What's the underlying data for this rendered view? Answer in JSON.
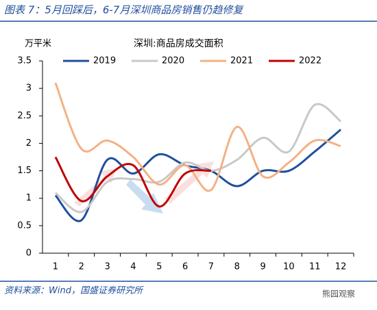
{
  "header": "图表 7：5月回踩后，6-7月深圳商品房销售仍趋修复",
  "source": "资料来源：Wind，国盛证券研究所",
  "watermark": "熊园观察",
  "chart_data": {
    "type": "line",
    "title": "深圳:商品房成交面积",
    "y_label": "万平米",
    "categories": [
      "1",
      "2",
      "3",
      "4",
      "5",
      "6",
      "7",
      "8",
      "9",
      "10",
      "11",
      "12"
    ],
    "series": [
      {
        "name": "2019",
        "color": "#1f4e9c",
        "values": [
          1.05,
          0.6,
          1.7,
          1.45,
          1.8,
          1.6,
          1.5,
          1.22,
          1.5,
          1.5,
          1.85,
          2.25
        ]
      },
      {
        "name": "2020",
        "color": "#c8c8c8",
        "values": [
          1.1,
          0.75,
          1.3,
          1.35,
          1.3,
          1.65,
          1.5,
          1.7,
          2.1,
          1.85,
          2.7,
          2.4
        ]
      },
      {
        "name": "2021",
        "color": "#f4b183",
        "values": [
          3.1,
          1.9,
          2.05,
          1.75,
          1.25,
          1.6,
          1.15,
          2.3,
          1.4,
          1.65,
          2.05,
          1.95
        ]
      },
      {
        "name": "2022",
        "color": "#c00000",
        "values": [
          1.75,
          0.95,
          1.4,
          1.6,
          0.85,
          1.45,
          1.5,
          null,
          null,
          null,
          null,
          null
        ]
      }
    ],
    "ylim": [
      0,
      3.5
    ],
    "yticks": [
      0,
      0.5,
      1,
      1.5,
      2,
      2.5,
      3,
      3.5
    ],
    "grid": false
  }
}
